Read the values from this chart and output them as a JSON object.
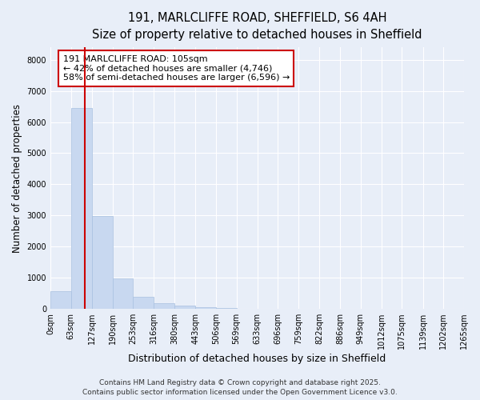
{
  "title_line1": "191, MARLCLIFFE ROAD, SHEFFIELD, S6 4AH",
  "title_line2": "Size of property relative to detached houses in Sheffield",
  "xlabel": "Distribution of detached houses by size in Sheffield",
  "ylabel": "Number of detached properties",
  "bar_color": "#c8d8f0",
  "bar_edgecolor": "#a8c0e0",
  "background_color": "#e8eef8",
  "plot_bg_color": "#e8eef8",
  "grid_color": "#ffffff",
  "vline_color": "#cc0000",
  "vline_x": 105,
  "annotation_title": "191 MARLCLIFFE ROAD: 105sqm",
  "annotation_line2": "← 42% of detached houses are smaller (4,746)",
  "annotation_line3": "58% of semi-detached houses are larger (6,596) →",
  "annotation_box_facecolor": "#ffffff",
  "annotation_box_edgecolor": "#cc0000",
  "bin_edges": [
    0,
    63,
    127,
    190,
    253,
    316,
    380,
    443,
    506,
    569,
    633,
    696,
    759,
    822,
    886,
    949,
    1012,
    1075,
    1139,
    1202,
    1265
  ],
  "bar_heights": [
    560,
    6450,
    2970,
    980,
    375,
    175,
    95,
    65,
    28,
    12,
    6,
    4,
    2,
    1,
    1,
    0,
    0,
    0,
    0,
    0
  ],
  "ylim": [
    0,
    8400
  ],
  "yticks": [
    0,
    1000,
    2000,
    3000,
    4000,
    5000,
    6000,
    7000,
    8000
  ],
  "tick_labels": [
    "0sqm",
    "63sqm",
    "127sqm",
    "190sqm",
    "253sqm",
    "316sqm",
    "380sqm",
    "443sqm",
    "506sqm",
    "569sqm",
    "633sqm",
    "696sqm",
    "759sqm",
    "822sqm",
    "886sqm",
    "949sqm",
    "1012sqm",
    "1075sqm",
    "1139sqm",
    "1202sqm",
    "1265sqm"
  ],
  "footer_line1": "Contains HM Land Registry data © Crown copyright and database right 2025.",
  "footer_line2": "Contains public sector information licensed under the Open Government Licence v3.0.",
  "title_fontsize": 10.5,
  "subtitle_fontsize": 9.5,
  "ylabel_fontsize": 8.5,
  "xlabel_fontsize": 9,
  "tick_fontsize": 7,
  "annotation_fontsize": 8,
  "footer_fontsize": 6.5
}
